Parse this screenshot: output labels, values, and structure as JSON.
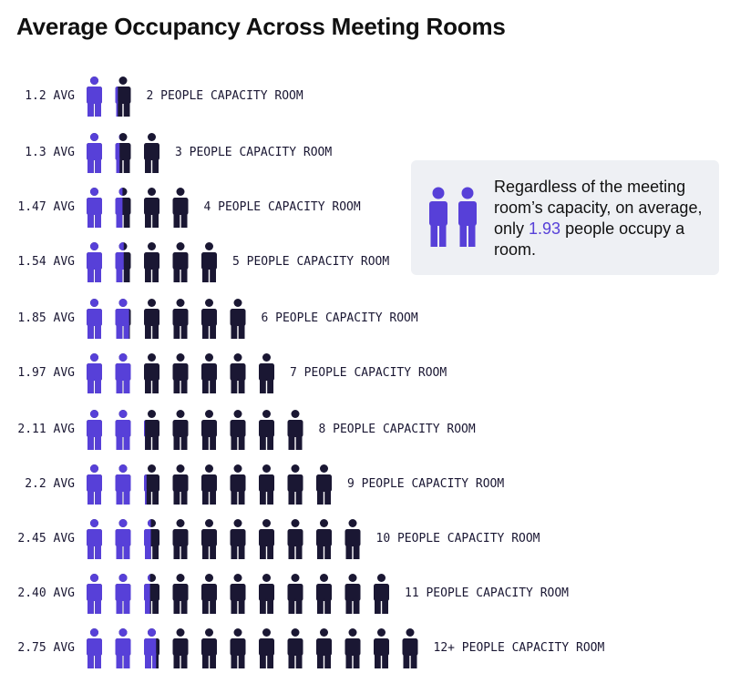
{
  "title": "Average Occupancy Across Meeting Rooms",
  "colors": {
    "occupied": "#5740d8",
    "empty": "#1a1733",
    "callout_bg": "#eef0f4",
    "highlight": "#5740d8"
  },
  "callout": {
    "text_before": "Regardless of the meeting room’s capacity, on average, only ",
    "highlight_value": "1.93",
    "text_after": " people occupy a room."
  },
  "chart_data": {
    "type": "pictograph",
    "title": "Average Occupancy Across Meeting Rooms",
    "unit_icon": "person-icon",
    "rows": [
      {
        "avg_label": "1.2 AVG",
        "avg": 1.2,
        "capacity": 2,
        "capacity_label": "2 PEOPLE CAPACITY ROOM"
      },
      {
        "avg_label": "1.3 AVG",
        "avg": 1.3,
        "capacity": 3,
        "capacity_label": "3 PEOPLE CAPACITY ROOM"
      },
      {
        "avg_label": "1.47 AVG",
        "avg": 1.47,
        "capacity": 4,
        "capacity_label": "4 PEOPLE CAPACITY ROOM"
      },
      {
        "avg_label": "1.54 AVG",
        "avg": 1.54,
        "capacity": 5,
        "capacity_label": "5 PEOPLE CAPACITY ROOM"
      },
      {
        "avg_label": "1.85 AVG",
        "avg": 1.85,
        "capacity": 6,
        "capacity_label": "6 PEOPLE CAPACITY ROOM"
      },
      {
        "avg_label": "1.97 AVG",
        "avg": 1.97,
        "capacity": 7,
        "capacity_label": "7 PEOPLE CAPACITY ROOM"
      },
      {
        "avg_label": "2.11 AVG",
        "avg": 2.11,
        "capacity": 8,
        "capacity_label": "8 PEOPLE CAPACITY ROOM"
      },
      {
        "avg_label": "2.2 AVG",
        "avg": 2.2,
        "capacity": 9,
        "capacity_label": "9 PEOPLE CAPACITY ROOM"
      },
      {
        "avg_label": "2.45 AVG",
        "avg": 2.45,
        "capacity": 10,
        "capacity_label": "10 PEOPLE CAPACITY ROOM"
      },
      {
        "avg_label": "2.40 AVG",
        "avg": 2.4,
        "capacity": 11,
        "capacity_label": "11 PEOPLE CAPACITY ROOM"
      },
      {
        "avg_label": "2.75 AVG",
        "avg": 2.75,
        "capacity": 12,
        "capacity_label": "12+ PEOPLE CAPACITY ROOM"
      }
    ]
  }
}
